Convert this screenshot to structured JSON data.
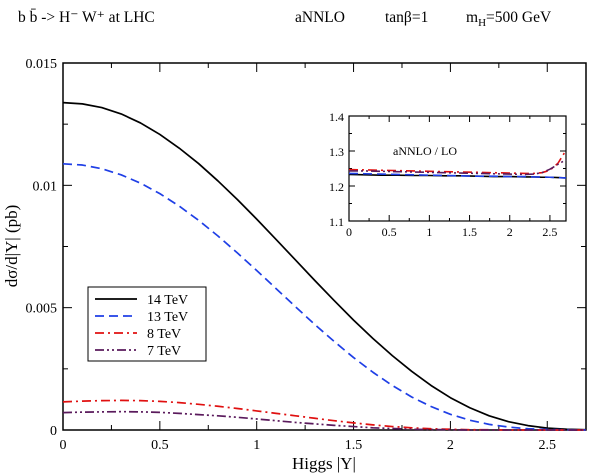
{
  "title_parts": {
    "process": "b b̄ -> H⁻ W⁺  at LHC",
    "order": "aNNLO",
    "tanbeta": "tanβ=1",
    "mass": "m_H=500 GeV"
  },
  "chart_data": [
    {
      "type": "line",
      "xlabel": "Higgs  |Y|",
      "ylabel": "dσ/d|Y| (pb)",
      "xlim": [
        0,
        2.7
      ],
      "ylim": [
        0,
        0.015
      ],
      "xticks": [
        0,
        0.5,
        1,
        1.5,
        2,
        2.5
      ],
      "xtick_labels": [
        "0",
        "0.5",
        "1",
        "1.5",
        "2",
        "2.5"
      ],
      "yticks": [
        0,
        0.005,
        0.01,
        0.015
      ],
      "ytick_labels": [
        "0",
        "0.005",
        "0.01",
        "0.015"
      ],
      "grid": false,
      "legend_position": "lower-left",
      "x": [
        0,
        0.1,
        0.2,
        0.3,
        0.4,
        0.5,
        0.6,
        0.7,
        0.8,
        0.9,
        1.0,
        1.1,
        1.2,
        1.3,
        1.4,
        1.5,
        1.6,
        1.7,
        1.8,
        1.9,
        2.0,
        2.1,
        2.2,
        2.3,
        2.4,
        2.5,
        2.6,
        2.7
      ],
      "series": [
        {
          "name": "14 TeV",
          "color": "#000000",
          "dash": "solid",
          "values": [
            0.01338,
            0.01333,
            0.01318,
            0.01292,
            0.01255,
            0.01208,
            0.01152,
            0.01089,
            0.01018,
            0.00942,
            0.00862,
            0.00779,
            0.00695,
            0.00611,
            0.00529,
            0.00449,
            0.00374,
            0.00304,
            0.0024,
            0.00182,
            0.00132,
            0.00091,
            0.00058,
            0.00034,
            0.00018,
            8e-05,
            3e-05,
            1e-05
          ]
        },
        {
          "name": "13 TeV",
          "color": "#1f3fe6",
          "dash": "dashed",
          "values": [
            0.01088,
            0.01083,
            0.01068,
            0.01043,
            0.01009,
            0.00966,
            0.00915,
            0.00857,
            0.00793,
            0.00724,
            0.00652,
            0.00578,
            0.00504,
            0.00431,
            0.00362,
            0.00296,
            0.00236,
            0.00182,
            0.00135,
            0.00096,
            0.00064,
            0.0004,
            0.00023,
            0.00012,
            5e-05,
            2e-05,
            1e-05,
            0.0
          ]
        },
        {
          "name": "8 TeV",
          "color": "#e01010",
          "dash": "dashdot",
          "values": [
            0.00115,
            0.00118,
            0.0012,
            0.00121,
            0.0012,
            0.00117,
            0.00112,
            0.00105,
            0.00097,
            0.00088,
            0.00078,
            0.00068,
            0.00058,
            0.00048,
            0.00038,
            0.00029,
            0.00021,
            0.00014,
            9e-05,
            5e-05,
            3e-05,
            1e-05,
            1e-05,
            0.0,
            0.0,
            0.0,
            0.0,
            0.0
          ]
        },
        {
          "name": "7 TeV",
          "color": "#5a1a5c",
          "dash": "dashdotdot",
          "values": [
            0.00071,
            0.00073,
            0.00074,
            0.00075,
            0.00074,
            0.00072,
            0.00068,
            0.00063,
            0.00058,
            0.00052,
            0.00045,
            0.00038,
            0.00031,
            0.00025,
            0.00019,
            0.00014,
            9e-05,
            6e-05,
            3e-05,
            2e-05,
            1e-05,
            0.0,
            0.0,
            0.0,
            0.0,
            0.0,
            0.0,
            0.0
          ]
        }
      ]
    },
    {
      "type": "line",
      "annotation": "aNNLO / LO",
      "xlim": [
        0,
        2.7
      ],
      "ylim": [
        1.1,
        1.4
      ],
      "xticks": [
        0,
        0.5,
        1,
        1.5,
        2,
        2.5
      ],
      "xtick_labels": [
        "0",
        "0.5",
        "1",
        "1.5",
        "2",
        "2.5"
      ],
      "yticks": [
        1.1,
        1.2,
        1.3,
        1.4
      ],
      "ytick_labels": [
        "1.1",
        "1.2",
        "1.3",
        "1.4"
      ],
      "x": [
        0,
        0.2,
        0.4,
        0.6,
        0.8,
        1.0,
        1.2,
        1.4,
        1.6,
        1.8,
        2.0,
        2.2,
        2.3,
        2.4,
        2.5,
        2.6,
        2.7
      ],
      "series": [
        {
          "name": "14 TeV",
          "color": "#000000",
          "dash": "solid",
          "values": [
            1.233,
            1.232,
            1.231,
            1.231,
            1.23,
            1.23,
            1.229,
            1.229,
            1.228,
            1.227,
            1.227,
            1.226,
            1.226,
            1.225,
            1.225,
            1.224,
            1.223
          ]
        },
        {
          "name": "13 TeV",
          "color": "#1f3fe6",
          "dash": "dashed",
          "values": [
            1.236,
            1.235,
            1.234,
            1.233,
            1.232,
            1.231,
            1.23,
            1.229,
            1.228,
            1.228,
            1.227,
            1.227,
            1.226,
            1.226,
            1.225,
            1.224,
            1.223
          ]
        },
        {
          "name": "8 TeV",
          "color": "#e01010",
          "dash": "dashdot",
          "values": [
            1.247,
            1.246,
            1.245,
            1.244,
            1.243,
            1.242,
            1.241,
            1.24,
            1.239,
            1.238,
            1.237,
            1.236,
            1.236,
            1.238,
            1.245,
            1.265,
            1.302
          ]
        },
        {
          "name": "7 TeV",
          "color": "#5a1a5c",
          "dash": "dashdotdot",
          "values": [
            1.243,
            1.243,
            1.242,
            1.241,
            1.24,
            1.239,
            1.238,
            1.237,
            1.236,
            1.235,
            1.234,
            1.233,
            1.234,
            1.238,
            1.248,
            1.262,
            1.275
          ]
        }
      ]
    }
  ]
}
